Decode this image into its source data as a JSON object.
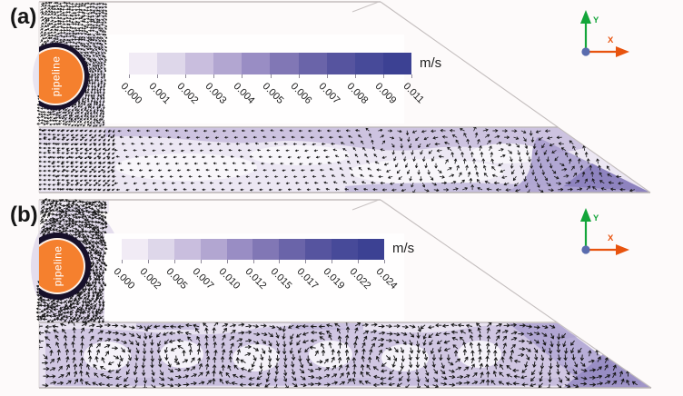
{
  "legend_colors": [
    "#f1ebf5",
    "#ded7ea",
    "#c9bede",
    "#b2a6d1",
    "#998dc4",
    "#8177b5",
    "#6a64a9",
    "#56549f",
    "#474a99",
    "#3c4193"
  ],
  "colors": {
    "pipeline_fill": "#f5802e",
    "arrow": "#141414",
    "contour_base_a": "#ece7f3",
    "contour_base_b": "#e8e2f0",
    "axis_x": "#e8530e",
    "axis_y": "#13a53a",
    "axis_origin": "#5a6cae"
  },
  "panels": [
    {
      "id": "a",
      "label": "(a)",
      "pipeline_label": "pipeline",
      "unit": "m/s",
      "axis": {
        "x": "X",
        "y": "Y"
      },
      "colorbar": {
        "ticks": [
          "0.000",
          "0.001",
          "0.002",
          "0.003",
          "0.004",
          "0.005",
          "0.006",
          "0.007",
          "0.008",
          "0.009",
          "0.011"
        ]
      }
    },
    {
      "id": "b",
      "label": "(b)",
      "pipeline_label": "pipeline",
      "unit": "m/s",
      "axis": {
        "x": "X",
        "y": "Y"
      },
      "colorbar": {
        "ticks": [
          "0.000",
          "0.002",
          "0.005",
          "0.007",
          "0.010",
          "0.012",
          "0.015",
          "0.017",
          "0.019",
          "0.022",
          "0.024"
        ]
      }
    }
  ],
  "chart_data": [
    {
      "type": "heatmap",
      "title": "(a)",
      "unit": "m/s",
      "legend_ticks": [
        0.0,
        0.001,
        0.002,
        0.003,
        0.004,
        0.005,
        0.006,
        0.007,
        0.008,
        0.009,
        0.011
      ],
      "legend_colors": [
        "#f1ebf5",
        "#ded7ea",
        "#c9bede",
        "#b2a6d1",
        "#998dc4",
        "#8177b5",
        "#6a64a9",
        "#56549f",
        "#474a99",
        "#3c4193"
      ],
      "legend_position": "top-center",
      "xlabel": "X",
      "ylabel": "Y",
      "annotations": [
        "pipeline"
      ]
    },
    {
      "type": "heatmap",
      "title": "(b)",
      "unit": "m/s",
      "legend_ticks": [
        0.0,
        0.002,
        0.005,
        0.007,
        0.01,
        0.012,
        0.015,
        0.017,
        0.019,
        0.022,
        0.024
      ],
      "legend_colors": [
        "#f1ebf5",
        "#ded7ea",
        "#c9bede",
        "#b2a6d1",
        "#998dc4",
        "#8177b5",
        "#6a64a9",
        "#56549f",
        "#474a99",
        "#3c4193"
      ],
      "legend_position": "top-center",
      "xlabel": "X",
      "ylabel": "Y",
      "annotations": [
        "pipeline"
      ]
    }
  ]
}
